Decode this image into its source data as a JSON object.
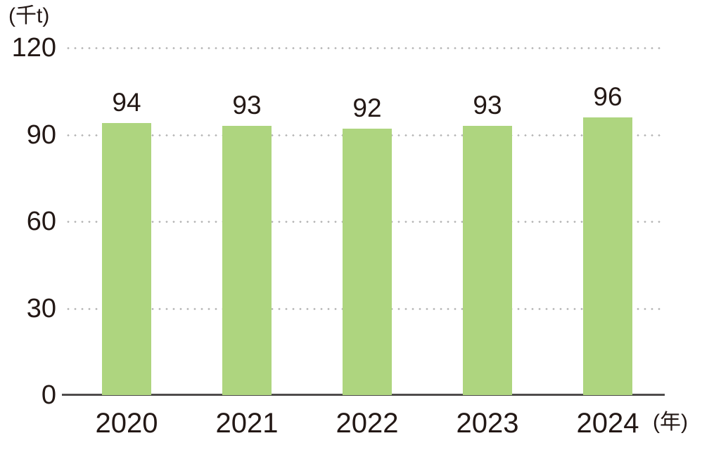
{
  "chart_data": {
    "type": "bar",
    "title": "",
    "y_unit": "(千t)",
    "x_unit": "(年)",
    "categories": [
      "2020",
      "2021",
      "2022",
      "2023",
      "2024"
    ],
    "values": [
      94,
      93,
      92,
      93,
      96
    ],
    "data_labels": [
      "94",
      "93",
      "92",
      "93",
      "96"
    ],
    "yticks": [
      0,
      30,
      60,
      90,
      120
    ],
    "ytick_labels": [
      "0",
      "30",
      "60",
      "90",
      "120"
    ],
    "ylim": [
      0,
      120
    ],
    "xlabel": "",
    "ylabel": "",
    "grid": "horizontal dotted lines at 30, 60, 90, 120; solid baseline at 0",
    "legend": "none",
    "colors": {
      "bar_fill": "#aed57f",
      "grid_dot": "#b5b5b5",
      "axis_line": "#4f4c4c",
      "text": "#231815"
    }
  }
}
